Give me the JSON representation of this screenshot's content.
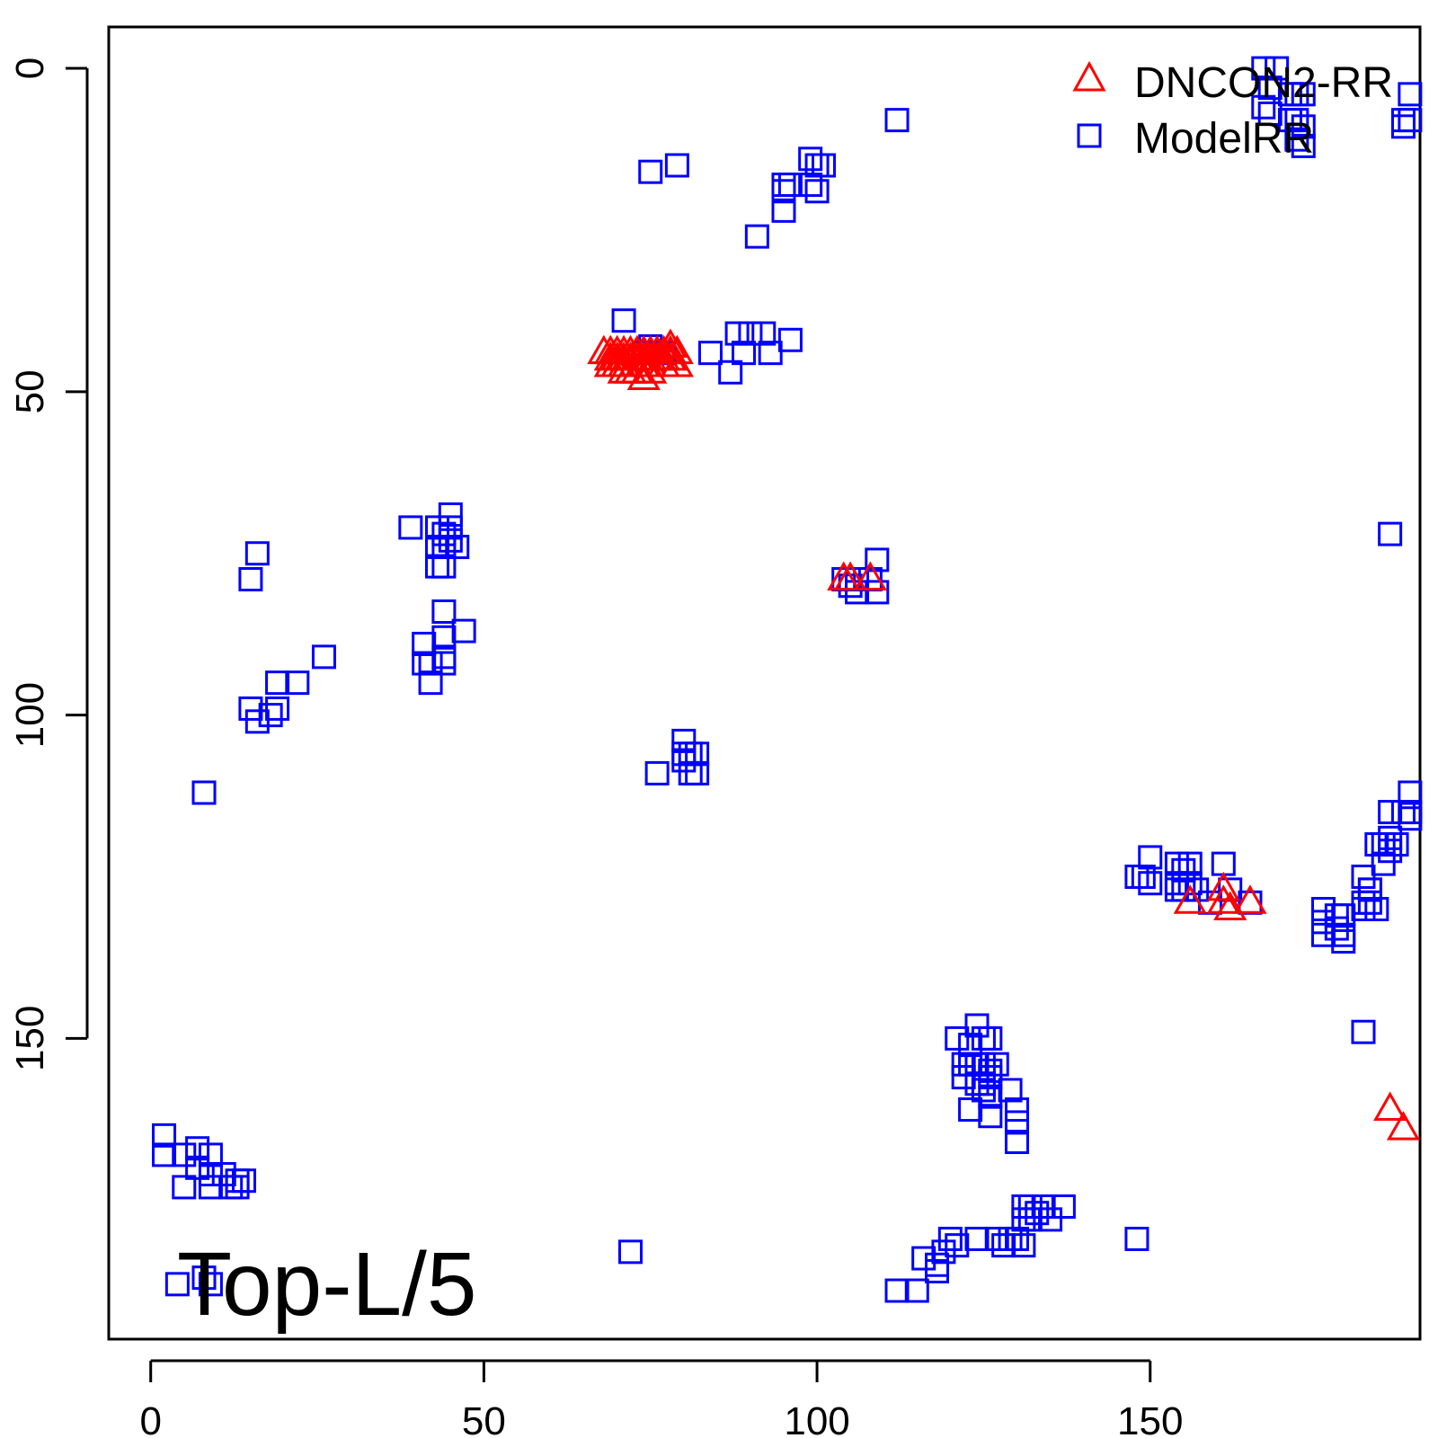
{
  "chart_data": {
    "type": "scatter",
    "title": "",
    "xlabel": "",
    "ylabel": "",
    "xlim": [
      -6.3,
      190.5
    ],
    "ylim": [
      -6.4,
      196.5
    ],
    "y_reversed": true,
    "x_ticks": [
      "0",
      "50",
      "100",
      "150"
    ],
    "y_ticks": [
      "0",
      "50",
      "100",
      "150"
    ],
    "annotation": "Top-L/5",
    "legend_position": "top-right",
    "grid": false,
    "series": [
      {
        "name": "DNCON2-RR",
        "marker": "triangle",
        "color": "#ff0000",
        "points": [
          [
            68,
            44
          ],
          [
            69,
            44
          ],
          [
            69,
            45
          ],
          [
            69,
            46
          ],
          [
            70,
            44
          ],
          [
            70,
            45
          ],
          [
            70,
            46
          ],
          [
            71,
            44
          ],
          [
            71,
            45
          ],
          [
            71,
            46
          ],
          [
            71,
            47
          ],
          [
            72,
            44
          ],
          [
            72,
            45
          ],
          [
            72,
            47
          ],
          [
            73,
            44
          ],
          [
            73,
            45
          ],
          [
            73,
            47
          ],
          [
            74,
            44
          ],
          [
            74,
            45
          ],
          [
            74,
            46
          ],
          [
            74,
            48
          ],
          [
            75,
            44
          ],
          [
            75,
            45
          ],
          [
            75,
            46
          ],
          [
            75,
            47
          ],
          [
            76,
            44
          ],
          [
            76,
            45
          ],
          [
            77,
            44
          ],
          [
            77,
            45
          ],
          [
            77,
            46
          ],
          [
            78,
            43
          ],
          [
            78,
            44
          ],
          [
            78,
            45
          ],
          [
            79,
            44
          ],
          [
            79,
            46
          ],
          [
            104,
            79
          ],
          [
            105,
            79
          ],
          [
            108,
            79
          ],
          [
            156,
            129
          ],
          [
            161,
            127
          ],
          [
            161,
            129
          ],
          [
            162,
            130
          ],
          [
            165,
            129
          ],
          [
            186,
            161
          ],
          [
            188,
            164
          ]
        ]
      },
      {
        "name": "ModelRR",
        "marker": "square",
        "color": "#0000ff",
        "points": [
          [
            167,
            0
          ],
          [
            169,
            0
          ],
          [
            168,
            3
          ],
          [
            171,
            4
          ],
          [
            172,
            4
          ],
          [
            173,
            4
          ],
          [
            167,
            6
          ],
          [
            168,
            7
          ],
          [
            171,
            8
          ],
          [
            172,
            8
          ],
          [
            173,
            9
          ],
          [
            172,
            11
          ],
          [
            173,
            12
          ],
          [
            189,
            4
          ],
          [
            189,
            8
          ],
          [
            188,
            8
          ],
          [
            188,
            9
          ],
          [
            112,
            8
          ],
          [
            75,
            16
          ],
          [
            79,
            15
          ],
          [
            99,
            14
          ],
          [
            100,
            15
          ],
          [
            101,
            15
          ],
          [
            99,
            18
          ],
          [
            100,
            19
          ],
          [
            95,
            18
          ],
          [
            96,
            18
          ],
          [
            95,
            19
          ],
          [
            95,
            22
          ],
          [
            91,
            26
          ],
          [
            71,
            39
          ],
          [
            88,
            41
          ],
          [
            89,
            44
          ],
          [
            90,
            41
          ],
          [
            92,
            41
          ],
          [
            93,
            44
          ],
          [
            96,
            42
          ],
          [
            84,
            44
          ],
          [
            87,
            47
          ],
          [
            74,
            44
          ],
          [
            75,
            43
          ],
          [
            76,
            44
          ],
          [
            77,
            44
          ],
          [
            45,
            69
          ],
          [
            39,
            71
          ],
          [
            43,
            71
          ],
          [
            44,
            72
          ],
          [
            45,
            71
          ],
          [
            43,
            74
          ],
          [
            44,
            74
          ],
          [
            45,
            73
          ],
          [
            46,
            74
          ],
          [
            43,
            77
          ],
          [
            44,
            77
          ],
          [
            16,
            75
          ],
          [
            15,
            79
          ],
          [
            109,
            76
          ],
          [
            104,
            79
          ],
          [
            105,
            80
          ],
          [
            106,
            79
          ],
          [
            106,
            81
          ],
          [
            108,
            79
          ],
          [
            109,
            81
          ],
          [
            44,
            84
          ],
          [
            47,
            87
          ],
          [
            44,
            88
          ],
          [
            41,
            89
          ],
          [
            42,
            92
          ],
          [
            44,
            92
          ],
          [
            41,
            92
          ],
          [
            42,
            95
          ],
          [
            44,
            91
          ],
          [
            26,
            91
          ],
          [
            22,
            95
          ],
          [
            19,
            95
          ],
          [
            19,
            99
          ],
          [
            18,
            100
          ],
          [
            15,
            99
          ],
          [
            16,
            101
          ],
          [
            8,
            112
          ],
          [
            80,
            104
          ],
          [
            80,
            106
          ],
          [
            81,
            106
          ],
          [
            82,
            106
          ],
          [
            80,
            107
          ],
          [
            81,
            109
          ],
          [
            82,
            109
          ],
          [
            76,
            109
          ],
          [
            150,
            122
          ],
          [
            149,
            125
          ],
          [
            148,
            125
          ],
          [
            150,
            126
          ],
          [
            154,
            123
          ],
          [
            155,
            124
          ],
          [
            156,
            123
          ],
          [
            154,
            126
          ],
          [
            155,
            127
          ],
          [
            156,
            126
          ],
          [
            154,
            127
          ],
          [
            157,
            127
          ],
          [
            159,
            129
          ],
          [
            161,
            123
          ],
          [
            162,
            127
          ],
          [
            165,
            129
          ],
          [
            176,
            130
          ],
          [
            178,
            131
          ],
          [
            179,
            131
          ],
          [
            176,
            132
          ],
          [
            178,
            133
          ],
          [
            179,
            134
          ],
          [
            176,
            134
          ],
          [
            179,
            135
          ],
          [
            185,
            120
          ],
          [
            186,
            119
          ],
          [
            186,
            121
          ],
          [
            187,
            120
          ],
          [
            185,
            123
          ],
          [
            184,
            120
          ],
          [
            186,
            115
          ],
          [
            188,
            115
          ],
          [
            189,
            115
          ],
          [
            189,
            112
          ],
          [
            189,
            116
          ],
          [
            182,
            125
          ],
          [
            183,
            127
          ],
          [
            183,
            129
          ],
          [
            182,
            129
          ],
          [
            182,
            130
          ],
          [
            184,
            130
          ],
          [
            183,
            127
          ],
          [
            186,
            72
          ],
          [
            124,
            148
          ],
          [
            125,
            150
          ],
          [
            126,
            150
          ],
          [
            121,
            150
          ],
          [
            123,
            151
          ],
          [
            122,
            154
          ],
          [
            123,
            154
          ],
          [
            124,
            154
          ],
          [
            125,
            154
          ],
          [
            126,
            155
          ],
          [
            125,
            157
          ],
          [
            127,
            154
          ],
          [
            126,
            156
          ],
          [
            122,
            156
          ],
          [
            124,
            157
          ],
          [
            125,
            158
          ],
          [
            129,
            158
          ],
          [
            123,
            161
          ],
          [
            126,
            162
          ],
          [
            130,
            161
          ],
          [
            130,
            163
          ],
          [
            130,
            166
          ],
          [
            126,
            159
          ],
          [
            182,
            149
          ],
          [
            2,
            165
          ],
          [
            5,
            168
          ],
          [
            7,
            167
          ],
          [
            9,
            168
          ],
          [
            2,
            168
          ],
          [
            7,
            170
          ],
          [
            5,
            173
          ],
          [
            9,
            171
          ],
          [
            11,
            171
          ],
          [
            13,
            172
          ],
          [
            9,
            173
          ],
          [
            13,
            173
          ],
          [
            14,
            172
          ],
          [
            12,
            173
          ],
          [
            131,
            176
          ],
          [
            132,
            176
          ],
          [
            133,
            177
          ],
          [
            134,
            176
          ],
          [
            135,
            178
          ],
          [
            131,
            178
          ],
          [
            132,
            178
          ],
          [
            137,
            176
          ],
          [
            124,
            181
          ],
          [
            120,
            181
          ],
          [
            121,
            182
          ],
          [
            119,
            183
          ],
          [
            118,
            185
          ],
          [
            116,
            184
          ],
          [
            118,
            186
          ],
          [
            127,
            181
          ],
          [
            128,
            182
          ],
          [
            129,
            181
          ],
          [
            130,
            181
          ],
          [
            131,
            182
          ],
          [
            148,
            181
          ],
          [
            72,
            183
          ],
          [
            112,
            189
          ],
          [
            115,
            189
          ],
          [
            4,
            188
          ],
          [
            8,
            187
          ],
          [
            9,
            188
          ]
        ]
      }
    ]
  }
}
